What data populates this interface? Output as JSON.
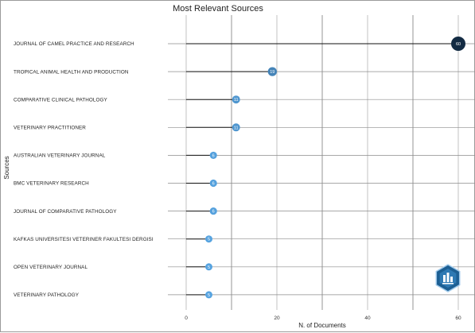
{
  "chart_data": {
    "type": "lollipop",
    "title": "Most Relevant Sources",
    "xlabel": "N. of Documents",
    "ylabel": "Sources",
    "xlim": [
      0,
      60
    ],
    "x_ticks": [
      0,
      20,
      40,
      60
    ],
    "grid": true,
    "categories": [
      "JOURNAL OF CAMEL PRACTICE AND RESEARCH",
      "TROPICAL ANIMAL HEALTH AND PRODUCTION",
      "COMPARATIVE CLINICAL PATHOLOGY",
      "VETERINARY PRACTITIONER",
      "AUSTRALIAN VETERINARY JOURNAL",
      "BMC VETERINARY RESEARCH",
      "JOURNAL OF COMPARATIVE PATHOLOGY",
      "KAFKAS UNIVERSITESI VETERINER FAKULTESI DERGISI",
      "OPEN VETERINARY JOURNAL",
      "VETERINARY PATHOLOGY"
    ],
    "values": [
      60,
      19,
      11,
      11,
      6,
      6,
      6,
      5,
      5,
      5
    ],
    "color_scale": [
      "#56a3e0",
      "#132b43"
    ]
  },
  "watermark": {
    "icon": "bibliometrix-hex-logo-icon"
  }
}
